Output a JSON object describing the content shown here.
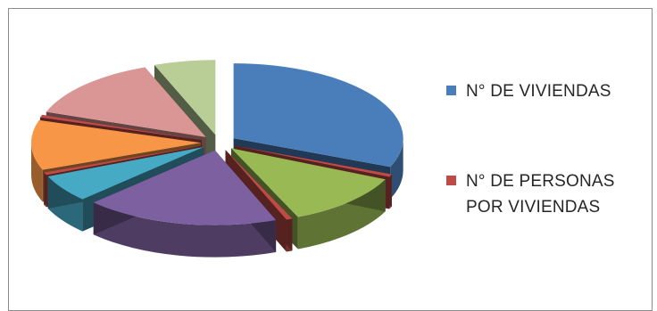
{
  "chart_data": {
    "type": "pie",
    "style": "3d-exploded",
    "title": "",
    "legend_position": "right",
    "series": [
      {
        "name": "N° DE VIVIENDAS",
        "color": "#4a7ebb",
        "values": [
          32,
          12,
          19,
          6,
          11,
          14,
          6
        ]
      },
      {
        "name": "N° DE PERSONAS POR VIVIENDAS",
        "color": "#be4b48",
        "values": [
          0.6,
          0.6,
          0,
          0.6,
          0.6,
          0,
          0
        ]
      }
    ],
    "slice_colors": [
      "#4a7ebb",
      "#98b954",
      "#7d60a0",
      "#46aac5",
      "#f79646",
      "#d99694",
      "#b9cd96",
      "#a9a1c4"
    ]
  },
  "legend": {
    "item_1": "N° DE VIVIENDAS",
    "item_2_line1": "N° DE PERSONAS",
    "item_2_line2": "POR VIVIENDAS"
  }
}
